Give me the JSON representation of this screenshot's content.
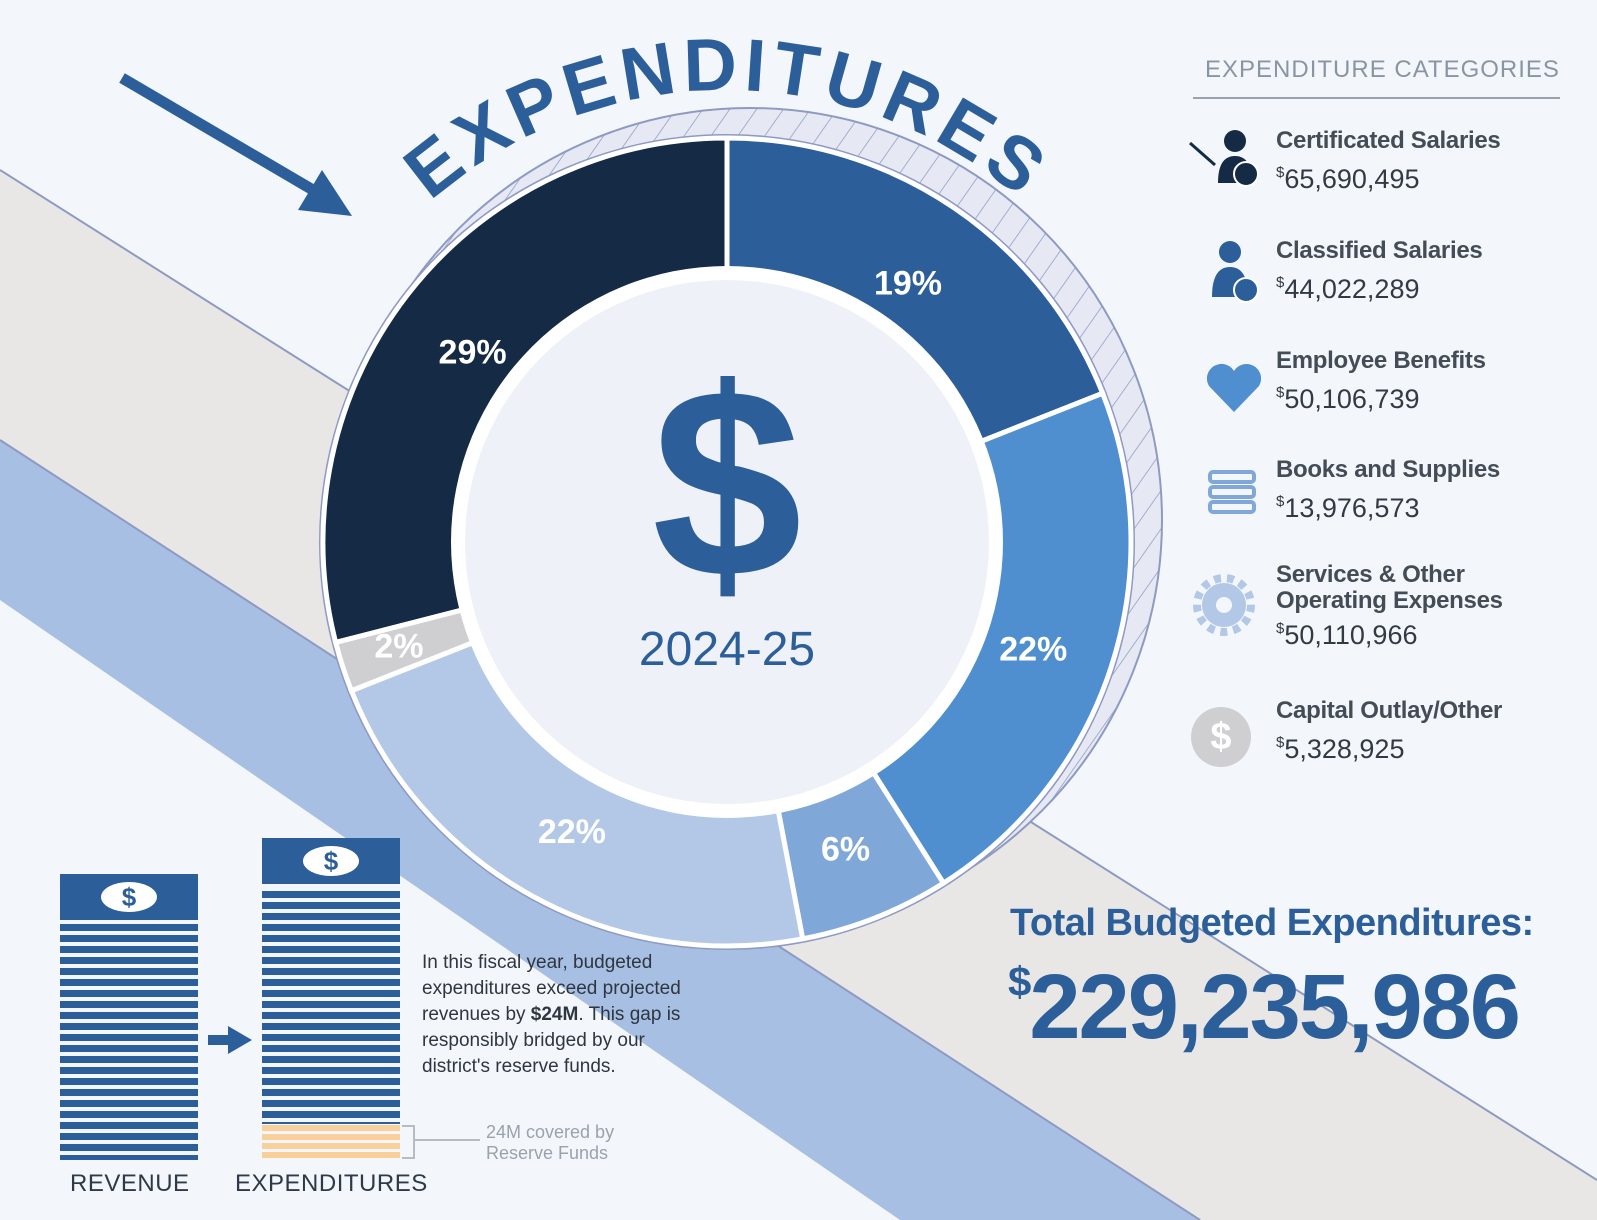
{
  "title": "EXPENDITURES",
  "chart_data": {
    "type": "donut",
    "center_label": "2024-25",
    "categories": [
      "Certificated Salaries",
      "Classified Salaries",
      "Employee Benefits",
      "Books and Supplies",
      "Services & Other Operating Expenses",
      "Capital Outlay/Other"
    ],
    "values": [
      29,
      19,
      22,
      6,
      22,
      2
    ],
    "value_labels": [
      "29%",
      "19%",
      "22%",
      "6%",
      "22%",
      "2%"
    ],
    "colors": [
      "#152a44",
      "#2c5f99",
      "#4f8fcf",
      "#7fa8d8",
      "#b3c8e6",
      "#cfcfd1"
    ]
  },
  "legend": {
    "heading": "EXPENDITURE CATEGORIES",
    "currency": "$",
    "amounts": [
      "65,690,495",
      "44,022,289",
      "50,106,739",
      "13,976,573",
      "50,110,966",
      "5,328,925"
    ]
  },
  "total": {
    "label": "Total Budgeted Expenditures:",
    "currency": "$",
    "amount": "229,235,986"
  },
  "comparison": {
    "note": [
      "In this fiscal year, budgeted expenditures exceed projected revenues by ",
      "$24M",
      ". This gap is responsibly bridged by our district's reserve funds."
    ],
    "callout": "24M covered by Reserve Funds",
    "revenue_label": "REVENUE",
    "expenditures_label": "EXPENDITURES"
  }
}
